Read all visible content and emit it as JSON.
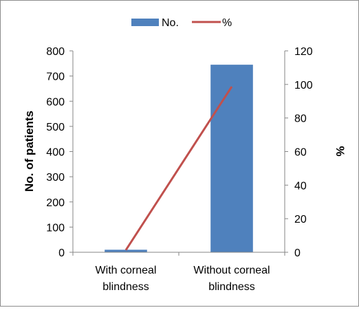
{
  "chart_data": {
    "type": "bar",
    "categories": [
      [
        "With corneal",
        "blindness"
      ],
      [
        "Without corneal",
        "blindness"
      ]
    ],
    "series": [
      {
        "name": "No.",
        "type": "bar",
        "axis": "left",
        "values": [
          10,
          745
        ],
        "color": "#4F81BD"
      },
      {
        "name": "%",
        "type": "line",
        "axis": "right",
        "values": [
          1.3,
          98.7
        ],
        "color": "#C0504D"
      }
    ],
    "title": "",
    "ylabel": "No. of patients",
    "y2label": "%",
    "ylim": [
      0,
      800
    ],
    "y2lim": [
      0,
      120
    ],
    "yticks": [
      "0",
      "100",
      "200",
      "300",
      "400",
      "500",
      "600",
      "700",
      "800"
    ],
    "y2ticks": [
      "0",
      "20",
      "40",
      "60",
      "80",
      "100",
      "120"
    ],
    "grid": false,
    "legend_position": "top"
  }
}
